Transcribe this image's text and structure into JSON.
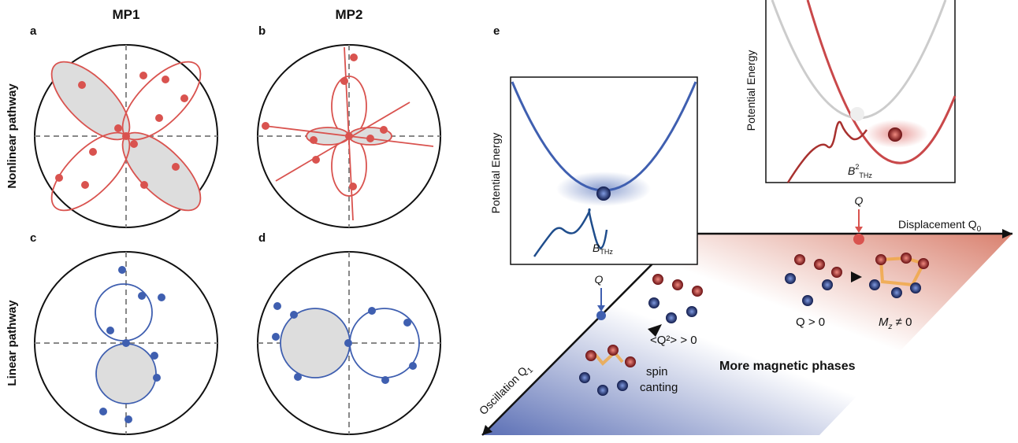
{
  "headers": {
    "mp1": "MP1",
    "mp2": "MP2"
  },
  "panel_labels": {
    "a": "a",
    "b": "b",
    "c": "c",
    "d": "d",
    "e": "e"
  },
  "row_labels": {
    "nonlinear": "Nonlinear pathway",
    "linear": "Linear pathway"
  },
  "inset_left": {
    "y_label": "Potential Energy",
    "field": {
      "text": "B",
      "sub": "THz"
    }
  },
  "inset_right": {
    "y_label": "Potential Energy",
    "field": {
      "text": "B",
      "sup": "2",
      "sub": "THz"
    }
  },
  "plane": {
    "q_left": "Q",
    "q_right": "Q",
    "displacement": {
      "text": "Displacement Q",
      "sub": "0"
    },
    "oscillation": {
      "text": "Oscillation Q",
      "sub": "1"
    },
    "q2": "<Q²> > 0",
    "spin_canting": [
      "spin",
      "canting"
    ],
    "more_phases": "More magnetic phases",
    "q_positive": "Q > 0",
    "mz": {
      "text": "M",
      "sub": "z",
      "rest": " ≠ 0"
    }
  }
}
